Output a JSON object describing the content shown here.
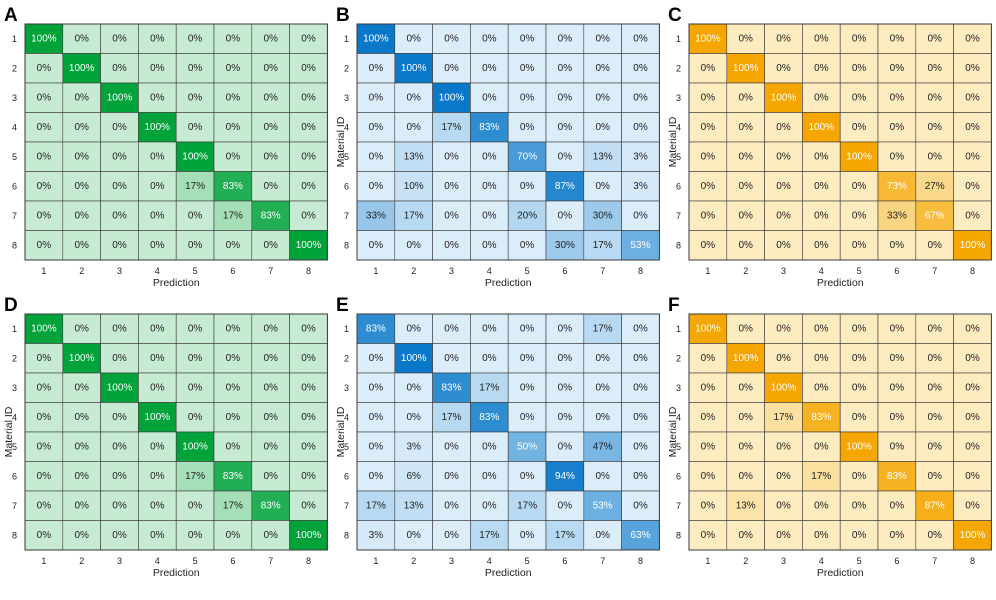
{
  "chart_data": [
    {
      "type": "heatmap",
      "panel": "A",
      "color": "#00a23a",
      "xlabel": "Prediction",
      "ylabel": "",
      "x_ticks": [
        "1",
        "2",
        "3",
        "4",
        "5",
        "6",
        "7",
        "8"
      ],
      "y_ticks": [
        "1",
        "2",
        "3",
        "4",
        "5",
        "6",
        "7",
        "8"
      ],
      "values": [
        [
          100,
          0,
          0,
          0,
          0,
          0,
          0,
          0
        ],
        [
          0,
          100,
          0,
          0,
          0,
          0,
          0,
          0
        ],
        [
          0,
          0,
          100,
          0,
          0,
          0,
          0,
          0
        ],
        [
          0,
          0,
          0,
          100,
          0,
          0,
          0,
          0
        ],
        [
          0,
          0,
          0,
          0,
          100,
          0,
          0,
          0
        ],
        [
          0,
          0,
          0,
          0,
          17,
          83,
          0,
          0
        ],
        [
          0,
          0,
          0,
          0,
          0,
          17,
          83,
          0
        ],
        [
          0,
          0,
          0,
          0,
          0,
          0,
          0,
          100
        ]
      ]
    },
    {
      "type": "heatmap",
      "panel": "B",
      "color": "#0a78c8",
      "xlabel": "Prediction",
      "ylabel": "Material ID",
      "x_ticks": [
        "1",
        "2",
        "3",
        "4",
        "5",
        "6",
        "7",
        "8"
      ],
      "y_ticks": [
        "1",
        "2",
        "3",
        "4",
        "5",
        "6",
        "7",
        "8"
      ],
      "values": [
        [
          100,
          0,
          0,
          0,
          0,
          0,
          0,
          0
        ],
        [
          0,
          100,
          0,
          0,
          0,
          0,
          0,
          0
        ],
        [
          0,
          0,
          100,
          0,
          0,
          0,
          0,
          0
        ],
        [
          0,
          0,
          17,
          83,
          0,
          0,
          0,
          0
        ],
        [
          0,
          13,
          0,
          0,
          70,
          0,
          13,
          3
        ],
        [
          0,
          10,
          0,
          0,
          0,
          87,
          0,
          3
        ],
        [
          33,
          17,
          0,
          0,
          20,
          0,
          30,
          0
        ],
        [
          0,
          0,
          0,
          0,
          0,
          30,
          17,
          53
        ]
      ]
    },
    {
      "type": "heatmap",
      "panel": "C",
      "color": "#f5a600",
      "xlabel": "Prediction",
      "ylabel": "Material ID",
      "x_ticks": [
        "1",
        "2",
        "3",
        "4",
        "5",
        "6",
        "7",
        "8"
      ],
      "y_ticks": [
        "1",
        "2",
        "3",
        "4",
        "5",
        "6",
        "7",
        "8"
      ],
      "values": [
        [
          100,
          0,
          0,
          0,
          0,
          0,
          0,
          0
        ],
        [
          0,
          100,
          0,
          0,
          0,
          0,
          0,
          0
        ],
        [
          0,
          0,
          100,
          0,
          0,
          0,
          0,
          0
        ],
        [
          0,
          0,
          0,
          100,
          0,
          0,
          0,
          0
        ],
        [
          0,
          0,
          0,
          0,
          100,
          0,
          0,
          0
        ],
        [
          0,
          0,
          0,
          0,
          0,
          73,
          27,
          0
        ],
        [
          0,
          0,
          0,
          0,
          0,
          33,
          67,
          0
        ],
        [
          0,
          0,
          0,
          0,
          0,
          0,
          0,
          100
        ]
      ]
    },
    {
      "type": "heatmap",
      "panel": "D",
      "color": "#00a23a",
      "xlabel": "Prediction",
      "ylabel": "Material ID",
      "x_ticks": [
        "1",
        "2",
        "3",
        "4",
        "5",
        "6",
        "7",
        "8"
      ],
      "y_ticks": [
        "1",
        "2",
        "3",
        "4",
        "5",
        "6",
        "7",
        "8"
      ],
      "values": [
        [
          100,
          0,
          0,
          0,
          0,
          0,
          0,
          0
        ],
        [
          0,
          100,
          0,
          0,
          0,
          0,
          0,
          0
        ],
        [
          0,
          0,
          100,
          0,
          0,
          0,
          0,
          0
        ],
        [
          0,
          0,
          0,
          100,
          0,
          0,
          0,
          0
        ],
        [
          0,
          0,
          0,
          0,
          100,
          0,
          0,
          0
        ],
        [
          0,
          0,
          0,
          0,
          17,
          83,
          0,
          0
        ],
        [
          0,
          0,
          0,
          0,
          0,
          17,
          83,
          0
        ],
        [
          0,
          0,
          0,
          0,
          0,
          0,
          0,
          100
        ]
      ]
    },
    {
      "type": "heatmap",
      "panel": "E",
      "color": "#0a78c8",
      "xlabel": "Prediction",
      "ylabel": "Material ID",
      "x_ticks": [
        "1",
        "2",
        "3",
        "4",
        "5",
        "6",
        "7",
        "8"
      ],
      "y_ticks": [
        "1",
        "2",
        "3",
        "4",
        "5",
        "6",
        "7",
        "8"
      ],
      "values": [
        [
          83,
          0,
          0,
          0,
          0,
          0,
          17,
          0
        ],
        [
          0,
          100,
          0,
          0,
          0,
          0,
          0,
          0
        ],
        [
          0,
          0,
          83,
          17,
          0,
          0,
          0,
          0
        ],
        [
          0,
          0,
          17,
          83,
          0,
          0,
          0,
          0
        ],
        [
          0,
          3,
          0,
          0,
          50,
          0,
          47,
          0
        ],
        [
          0,
          6,
          0,
          0,
          0,
          94,
          0,
          0
        ],
        [
          17,
          13,
          0,
          0,
          17,
          0,
          53,
          0
        ],
        [
          3,
          0,
          0,
          17,
          0,
          17,
          0,
          63
        ]
      ]
    },
    {
      "type": "heatmap",
      "panel": "F",
      "color": "#f5a600",
      "xlabel": "Prediction",
      "ylabel": "Material ID",
      "x_ticks": [
        "1",
        "2",
        "3",
        "4",
        "5",
        "6",
        "7",
        "8"
      ],
      "y_ticks": [
        "1",
        "2",
        "3",
        "4",
        "5",
        "6",
        "7",
        "8"
      ],
      "values": [
        [
          100,
          0,
          0,
          0,
          0,
          0,
          0,
          0
        ],
        [
          0,
          100,
          0,
          0,
          0,
          0,
          0,
          0
        ],
        [
          0,
          0,
          100,
          0,
          0,
          0,
          0,
          0
        ],
        [
          0,
          0,
          17,
          83,
          0,
          0,
          0,
          0
        ],
        [
          0,
          0,
          0,
          0,
          100,
          0,
          0,
          0
        ],
        [
          0,
          0,
          0,
          17,
          0,
          83,
          0,
          0
        ],
        [
          0,
          13,
          0,
          0,
          0,
          0,
          87,
          0
        ],
        [
          0,
          0,
          0,
          0,
          0,
          0,
          0,
          100
        ]
      ]
    }
  ]
}
